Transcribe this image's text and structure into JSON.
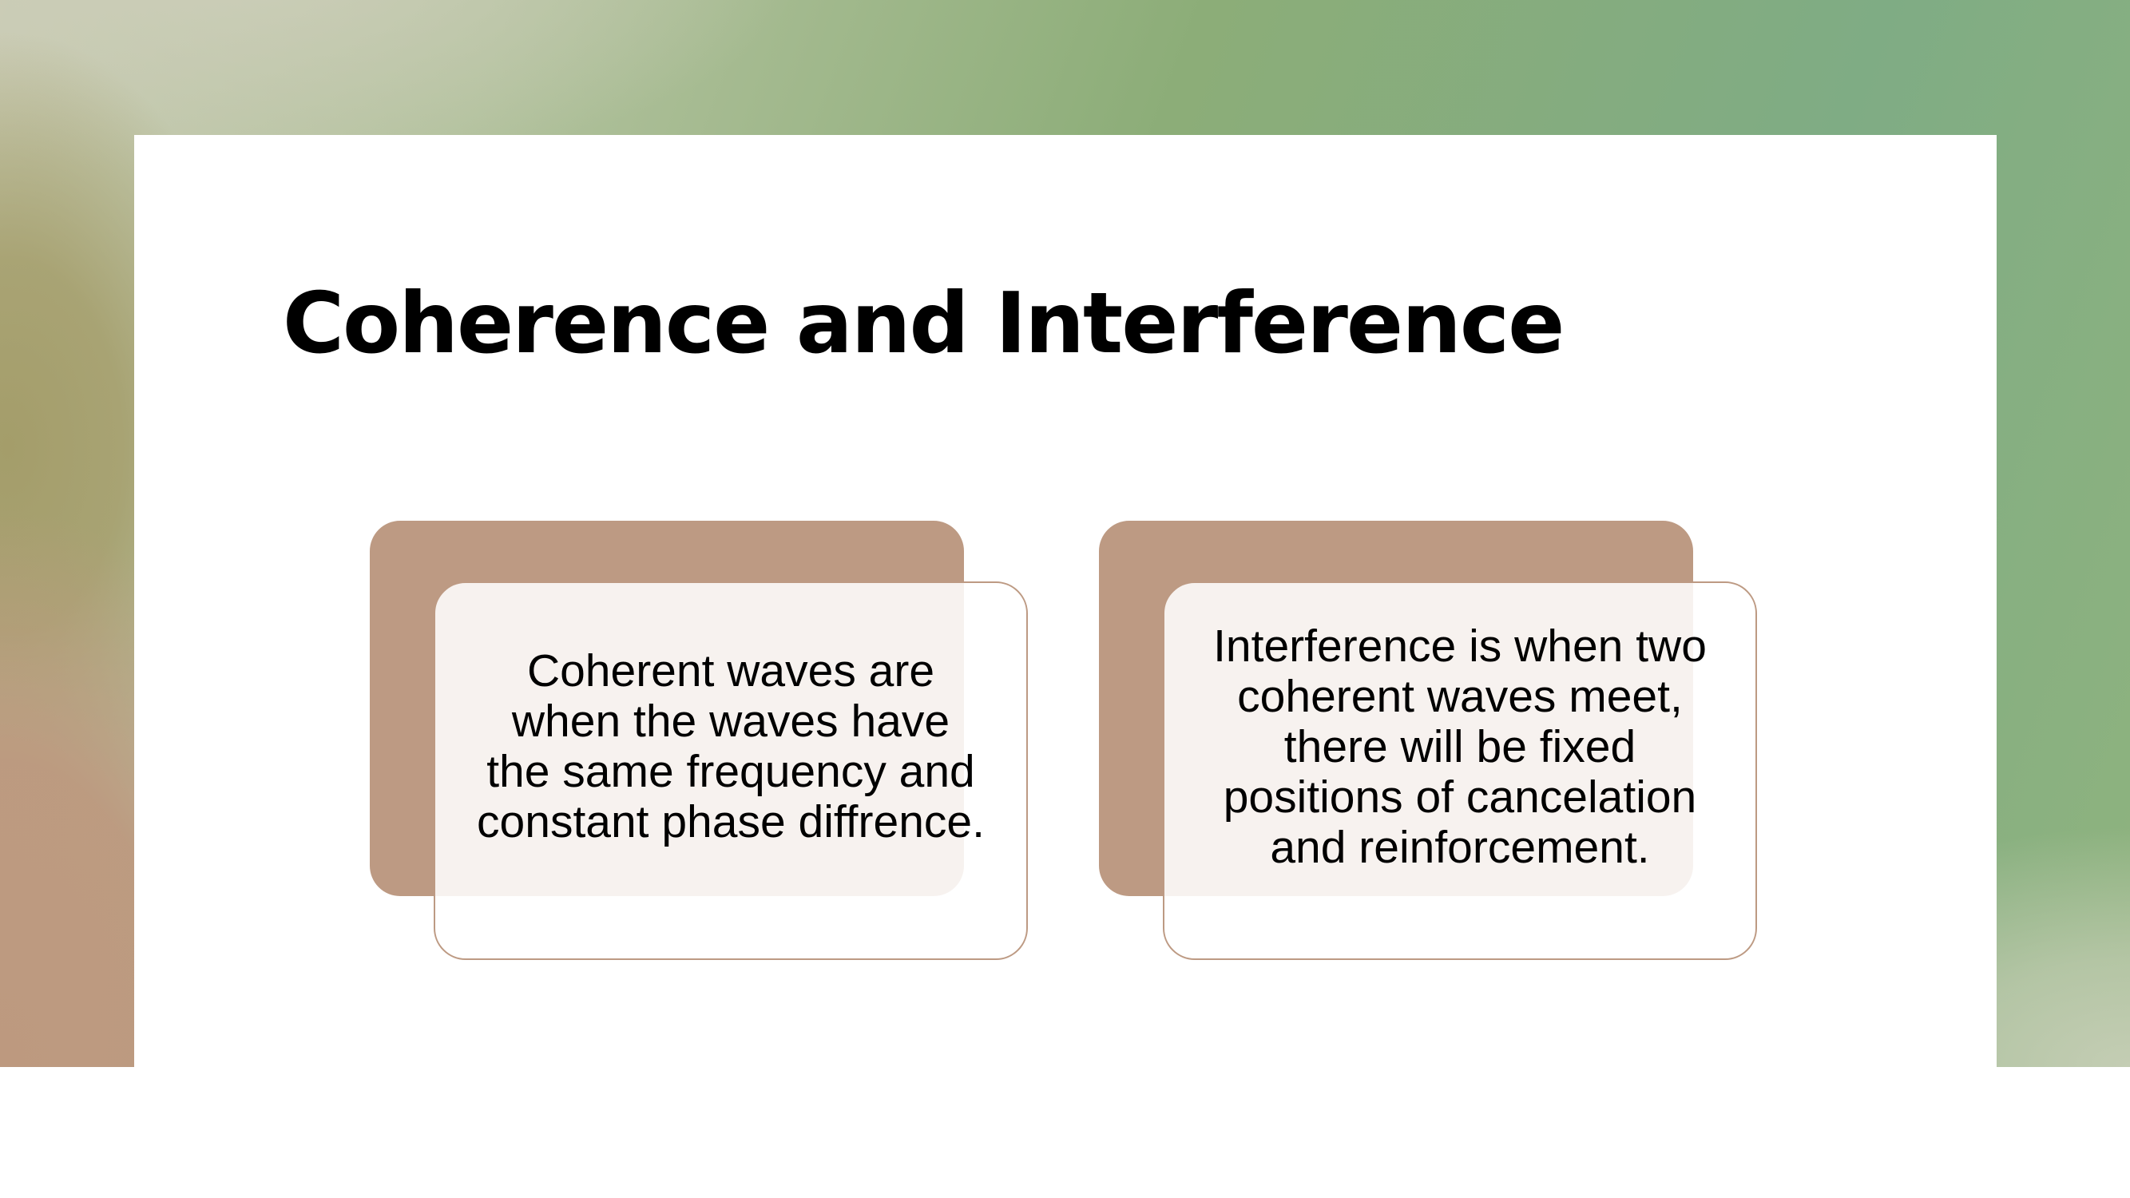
{
  "slide": {
    "title": "Coherence and Interference",
    "background_colors": {
      "green": "#8cad78",
      "sage": "#7fac84",
      "khaki": "#a49d6a",
      "rose": "#bd997f",
      "pale": "#c9cbb3"
    },
    "card_accent_color": "#bd9a83"
  },
  "cards": [
    {
      "lines": [
        "Coherent waves are",
        "when the waves have",
        "the same frequency and",
        "constant phase diffrence."
      ]
    },
    {
      "lines": [
        "Interference is when two",
        "coherent waves meet,",
        "there will be fixed",
        "positions of cancelation",
        "and reinforcement."
      ]
    }
  ]
}
